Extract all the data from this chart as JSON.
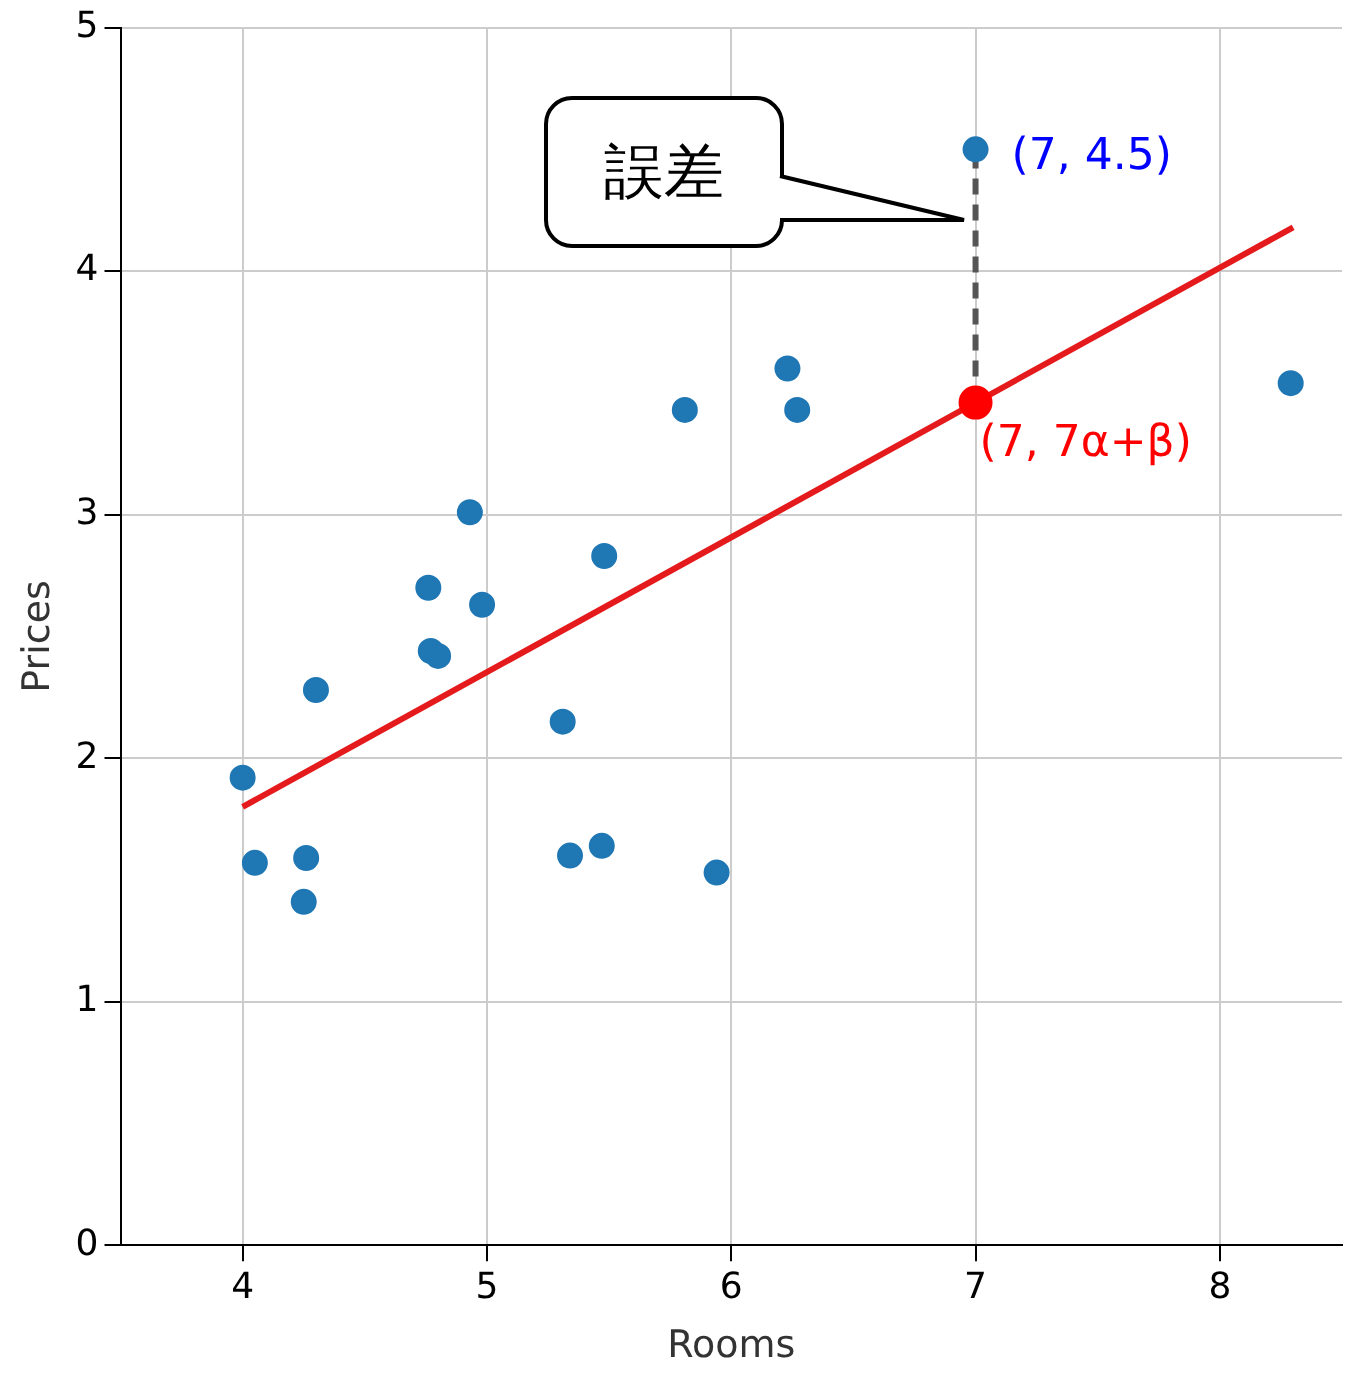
{
  "chart_data": {
    "type": "scatter",
    "xlabel": "Rooms",
    "ylabel": "Prices",
    "xlim": [
      3.5,
      8.5
    ],
    "ylim": [
      0,
      5
    ],
    "xticks": [
      4,
      5,
      6,
      7,
      8
    ],
    "yticks": [
      0,
      1,
      2,
      3,
      4,
      5
    ],
    "grid": true,
    "legend": false,
    "marker": "circle",
    "series": [
      {
        "type": "scatter",
        "color": "#1f77b4",
        "x": [
          4.0,
          4.05,
          4.26,
          4.25,
          4.3,
          4.76,
          4.77,
          4.8,
          4.93,
          4.98,
          5.31,
          5.34,
          5.48,
          5.47,
          5.81,
          5.94,
          6.23,
          6.27,
          7,
          8.29
        ],
        "values": [
          1.92,
          1.57,
          1.59,
          1.41,
          2.28,
          2.7,
          2.44,
          2.42,
          3.01,
          2.63,
          2.15,
          1.6,
          2.83,
          1.64,
          3.43,
          1.53,
          3.6,
          3.43,
          4.5,
          3.54
        ]
      },
      {
        "type": "line",
        "color": "#e41a1c",
        "marker": "none",
        "line_style": "solid",
        "x": [
          4,
          8.3
        ],
        "values": [
          1.8,
          4.18
        ]
      },
      {
        "type": "scatter",
        "color": "#ff0000",
        "x": [
          7
        ],
        "values": [
          3.46
        ]
      },
      {
        "type": "line",
        "color": "#555555",
        "marker": "none",
        "line_style": "dashed",
        "x": [
          7,
          7
        ],
        "values": [
          3.46,
          4.5
        ]
      }
    ],
    "annotations": [
      "誤差",
      {
        "text": "(7, 4.5)",
        "x": 7,
        "y": 4.5
      },
      {
        "text": "(7, 7α+β)",
        "x": 7,
        "y": 3.46
      }
    ]
  }
}
